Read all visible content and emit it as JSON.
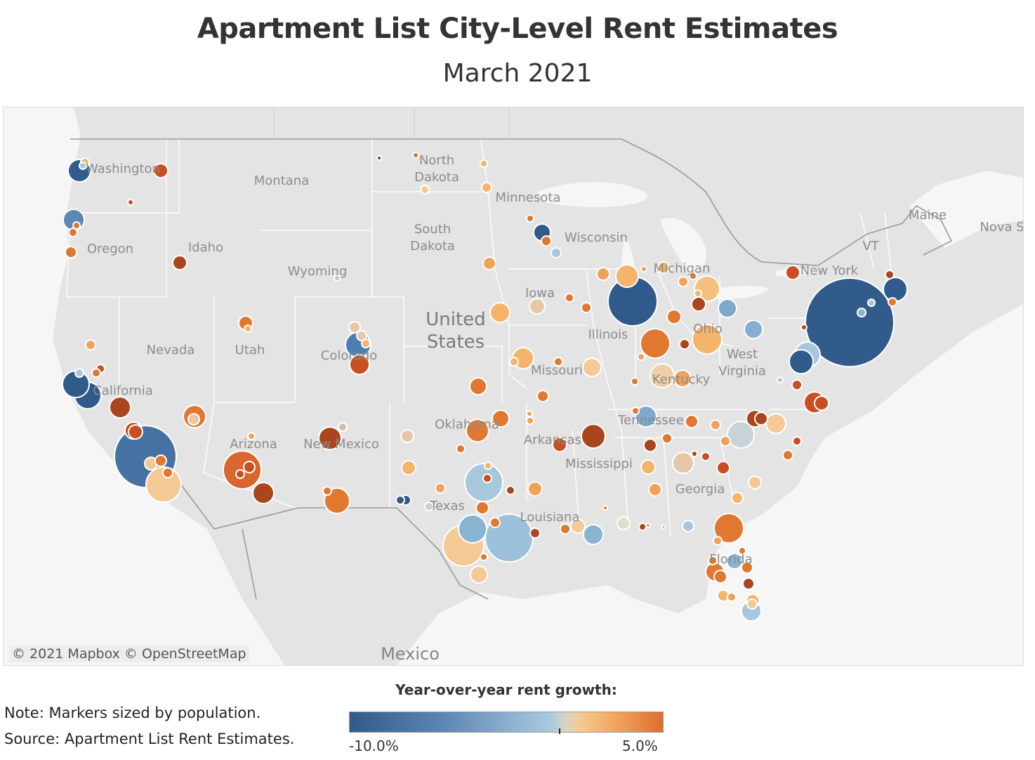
{
  "title": "Apartment List City-Level Rent Estimates",
  "subtitle": "March 2021",
  "attribution": "© 2021 Mapbox  © OpenStreetMap",
  "note": "Note: Markers sized by population.",
  "source": "Source: Apartment List Rent Estimates.",
  "legend": {
    "title": "Year-over-year rent growth:",
    "min_label": "-10.0%",
    "max_label": "5.0%",
    "min_value": -10.0,
    "max_value": 5.0,
    "colors": [
      "#2f5a8a",
      "#5e86b4",
      "#a8cae0",
      "#d9d3c5",
      "#f5c98e",
      "#f0a25a",
      "#dd6e2e"
    ]
  },
  "colors": {
    "land": "#e4e4e4",
    "water": "#f7f7f7",
    "border": "#ffffff",
    "country_border": "#9a9a9a",
    "marker_outline": "#ffffff"
  },
  "map_labels": {
    "washington": "Washington",
    "montana": "Montana",
    "north_dakota": "North\nDakota",
    "minnesota": "Minnesota",
    "maine": "Maine",
    "nova_scotia": "Nova S",
    "oregon": "Oregon",
    "idaho": "Idaho",
    "south_dakota": "South\nDakota",
    "wisconsin": "Wisconsin",
    "vt": "VT",
    "wyoming": "Wyoming",
    "michigan": "Michigan",
    "new_york": "New York",
    "iowa": "Iowa",
    "united_states": "United\nStates",
    "nevada": "Nevada",
    "utah": "Utah",
    "colorado": "Colorado",
    "illinois": "Illinois",
    "ohio": "Ohio",
    "west_virginia": "West\nVirginia",
    "missouri": "Missouri",
    "kentucky": "Kentucky",
    "california": "California",
    "oklahoma": "Oklahoma",
    "tennessee": "Tennessee",
    "arizona": "Arizona",
    "new_mexico": "New Mexico",
    "arkansas": "Arkansas",
    "mississippi": "Mississippi",
    "georgia": "Georgia",
    "texas": "Texas",
    "louisiana": "Louisiana",
    "florida": "Florida",
    "mexico": "Mexico"
  },
  "markers": [
    {
      "city": "New York",
      "growth": -9.5,
      "size": 9
    },
    {
      "city": "Los Angeles",
      "growth": -8.5,
      "size": 7
    },
    {
      "city": "Chicago",
      "growth": -9.8,
      "size": 5
    },
    {
      "city": "Houston",
      "growth": -2.0,
      "size": 5
    },
    {
      "city": "San Antonio",
      "growth": 1.0,
      "size": 4.5
    },
    {
      "city": "Dallas",
      "growth": -2.5,
      "size": 4
    },
    {
      "city": "Phoenix",
      "growth": 4.5,
      "size": 4
    },
    {
      "city": "San Francisco",
      "growth": -10.0,
      "size": 3
    },
    {
      "city": "San Jose",
      "growth": -9.5,
      "size": 3.5
    },
    {
      "city": "Seattle",
      "growth": -10.0,
      "size": 2.5
    },
    {
      "city": "Portland",
      "growth": -5.0,
      "size": 2.2
    },
    {
      "city": "Boston",
      "growth": -9.5,
      "size": 2.3
    },
    {
      "city": "Washington DC",
      "growth": -10.0,
      "size": 2.3
    },
    {
      "city": "Philadelphia",
      "growth": -2.5,
      "size": 2.8
    },
    {
      "city": "Columbus",
      "growth": 2.0,
      "size": 3
    },
    {
      "city": "Indianapolis",
      "growth": 4.0,
      "size": 3
    },
    {
      "city": "Jacksonville",
      "growth": 4.5,
      "size": 3
    },
    {
      "city": "Charlotte",
      "growth": -1.0,
      "size": 2.8
    },
    {
      "city": "Denver",
      "growth": -6.0,
      "size": 2.5
    },
    {
      "city": "El Paso",
      "growth": 4.8,
      "size": 2.5
    },
    {
      "city": "Memphis",
      "growth": 5.0,
      "size": 2.5
    },
    {
      "city": "Louisville",
      "growth": 0.5,
      "size": 2.3
    },
    {
      "city": "Austin",
      "growth": -3.0,
      "size": 3
    },
    {
      "city": "Oklahoma City",
      "growth": 3.5,
      "size": 2.3
    },
    {
      "city": "Albuquerque",
      "growth": 5.0,
      "size": 2.3
    },
    {
      "city": "Las Vegas",
      "growth": 3.5,
      "size": 2.3
    },
    {
      "city": "Detroit",
      "growth": 1.5,
      "size": 2.3
    },
    {
      "city": "Milwaukee",
      "growth": 1.0,
      "size": 2.0
    },
    {
      "city": "Minneapolis",
      "growth": -9.0,
      "size": 1.8
    },
    {
      "city": "Atlanta",
      "growth": 0.5,
      "size": 2.0
    },
    {
      "city": "Tampa",
      "growth": 4.8,
      "size": 1.8
    },
    {
      "city": "Miami",
      "growth": -3.5,
      "size": 2.0
    },
    {
      "city": "New Orleans",
      "growth": -3.5,
      "size": 1.8
    },
    {
      "city": "Kansas City",
      "growth": 3.0,
      "size": 2.0
    },
    {
      "city": "St. Louis",
      "growth": 2.0,
      "size": 1.8
    },
    {
      "city": "Sacramento",
      "growth": 5.0,
      "size": 2.0
    },
    {
      "city": "Fresno",
      "growth": 5.0,
      "size": 2.0
    },
    {
      "city": "San Diego",
      "growth": 1.5,
      "size": 2.5
    },
    {
      "city": "Tucson",
      "growth": 5.0,
      "size": 2.0
    },
    {
      "city": "Nashville",
      "growth": -4.0,
      "size": 2.0
    },
    {
      "city": "Pittsburgh",
      "growth": -4.0,
      "size": 1.8
    },
    {
      "city": "Cleveland",
      "growth": -3.5,
      "size": 1.8
    },
    {
      "city": "Buffalo",
      "growth": 5.0,
      "size": 1.5
    },
    {
      "city": "Salt Lake City",
      "growth": 3.5,
      "size": 1.5
    },
    {
      "city": "Boise",
      "growth": 5.0,
      "size": 1.5
    },
    {
      "city": "Spokane",
      "growth": 5.0,
      "size": 1.3
    },
    {
      "city": "Baltimore",
      "growth": -4.0,
      "size": 2.0
    }
  ]
}
